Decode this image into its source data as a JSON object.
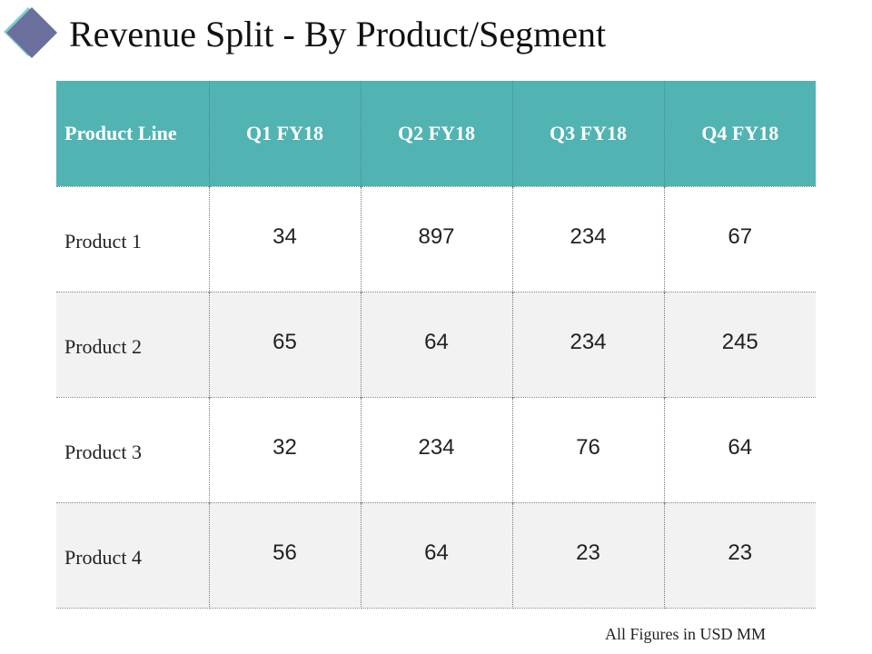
{
  "title": "Revenue Split - By Product/Segment",
  "colors": {
    "header_bg": "#52b3b3",
    "logo_diamond": "#6b6f9c",
    "logo_shadow": "#7ecfcf",
    "stripe_row": "#f2f2f2"
  },
  "table": {
    "headers": [
      "Product Line",
      "Q1 FY18",
      "Q2 FY18",
      "Q3 FY18",
      "Q4 FY18"
    ],
    "rows": [
      {
        "label": "Product 1",
        "values": [
          "34",
          "897",
          "234",
          "67"
        ]
      },
      {
        "label": "Product 2",
        "values": [
          "65",
          "64",
          "234",
          "245"
        ]
      },
      {
        "label": "Product 3",
        "values": [
          "32",
          "234",
          "76",
          "64"
        ]
      },
      {
        "label": "Product 4",
        "values": [
          "56",
          "64",
          "23",
          "23"
        ]
      }
    ]
  },
  "footnote": "All Figures in USD MM"
}
